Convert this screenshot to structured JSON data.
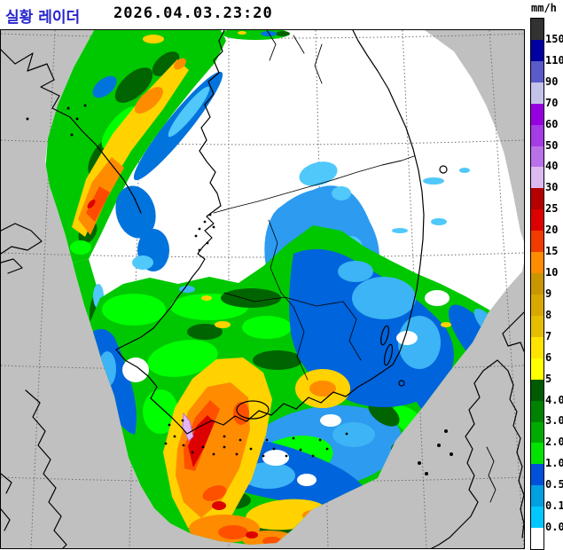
{
  "header": {
    "title": "실황 레이더",
    "timestamp": "2026.04.03.23:20",
    "unit_label": "mm/h",
    "title_color": "#2626cc"
  },
  "legend": {
    "unit": "mm/h",
    "boundary_labels": [
      "150",
      "110",
      "90",
      "70",
      "60",
      "50",
      "40",
      "30",
      "25",
      "20",
      "15",
      "10",
      "9",
      "8",
      "7",
      "6",
      "5",
      "4.0",
      "3.0",
      "2.0",
      "1.0",
      "0.5",
      "0.1",
      "0.0"
    ],
    "segment_colors_top_to_bottom": [
      "#323232",
      "#0000a0",
      "#5a5ac8",
      "#c3c3e9",
      "#9600e1",
      "#a53ce6",
      "#b971ea",
      "#ddb9f1",
      "#b40000",
      "#dc0000",
      "#f03c00",
      "#ff8c00",
      "#c89600",
      "#d7a800",
      "#e6be00",
      "#ffe400",
      "#ffff00",
      "#005a00",
      "#008200",
      "#00aa00",
      "#00e400",
      "#0050dc",
      "#00a0e1",
      "#00c8ff",
      "#ffffff"
    ]
  },
  "map": {
    "colors": {
      "land_outside_coverage": "#c0c0c0",
      "radar_coverage": "#ffffff",
      "coastline": "#000000",
      "graticule": "#6e6e6e",
      "frame": "#000000",
      "rain_light_cyan": "#50c8fa",
      "rain_moderate_blue": "#0064dc",
      "rain_green": "#00c800",
      "rain_heavy_yellow": "#ffd200",
      "rain_heavy_orange": "#ff8c00",
      "rain_severe_red": "#dc0000",
      "rain_extreme_magenta": "#e1b4f5"
    }
  }
}
